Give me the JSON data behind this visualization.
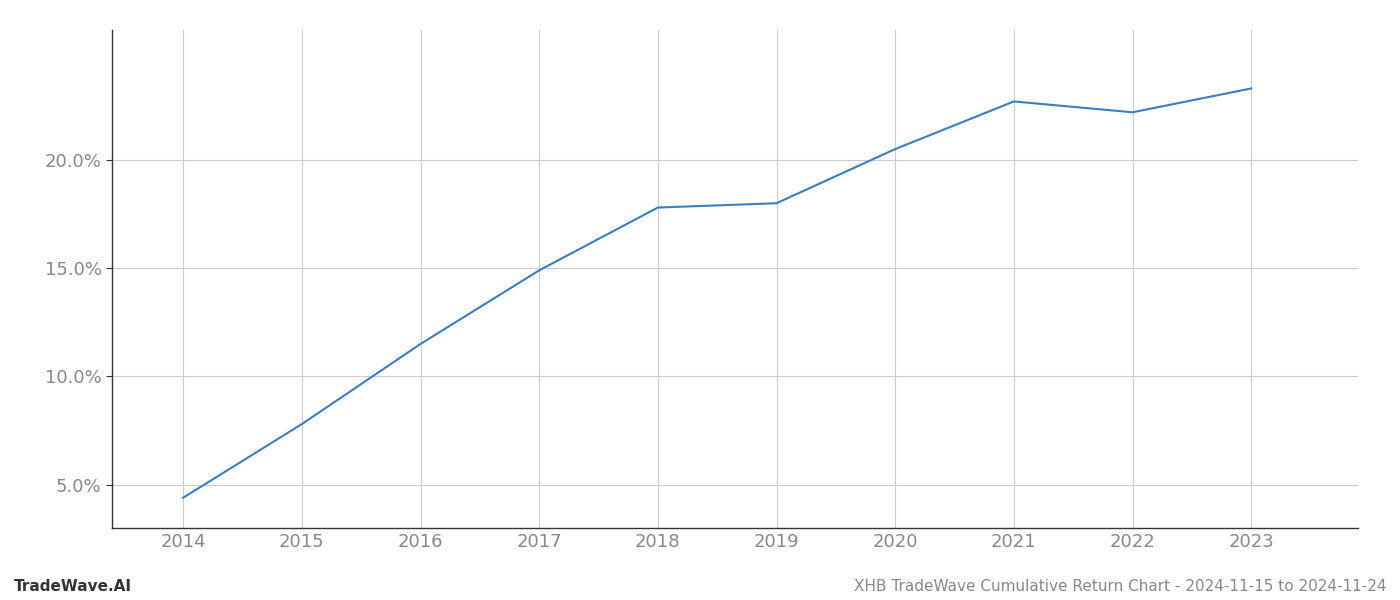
{
  "x_years": [
    2014,
    2015,
    2016,
    2017,
    2018,
    2019,
    2020,
    2021,
    2022,
    2023
  ],
  "y_values": [
    4.4,
    7.8,
    11.5,
    14.9,
    17.8,
    18.0,
    20.5,
    22.7,
    22.2,
    23.3
  ],
  "line_color": "#3a7ebf",
  "line_width": 1.5,
  "background_color": "#ffffff",
  "grid_color": "#cccccc",
  "footer_left": "TradeWave.AI",
  "footer_right": "XHB TradeWave Cumulative Return Chart - 2024-11-15 to 2024-11-24",
  "ylim_min": 3.0,
  "ylim_max": 26.0,
  "yticks": [
    5.0,
    10.0,
    15.0,
    20.0
  ],
  "xticks": [
    2014,
    2015,
    2016,
    2017,
    2018,
    2019,
    2020,
    2021,
    2022,
    2023
  ],
  "tick_fontsize": 13,
  "footer_fontsize": 11,
  "axis_color": "#888888",
  "spine_color": "#333333"
}
